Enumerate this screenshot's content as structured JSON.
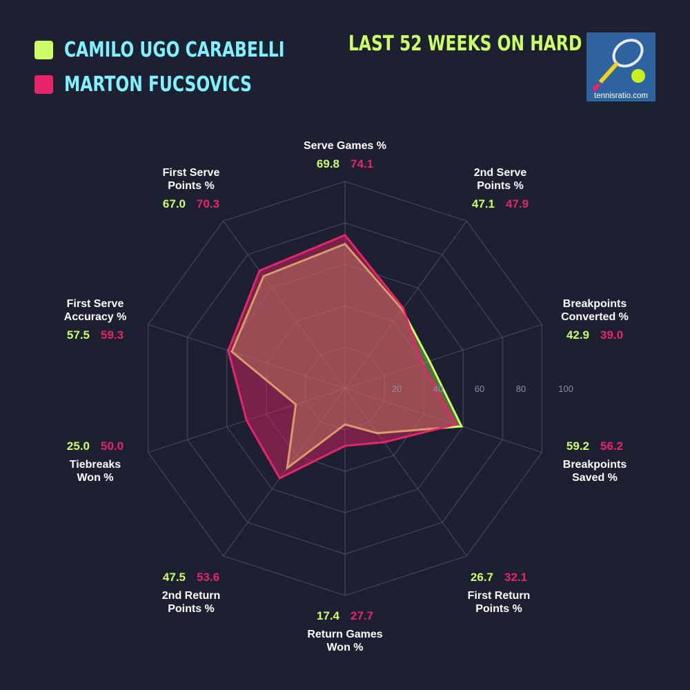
{
  "legend": [
    {
      "name": "CAMILO UGO CARABELLI",
      "color": "#ccff66"
    },
    {
      "name": "MARTON FUCSOVICS",
      "color": "#e8246a"
    }
  ],
  "period": "LAST 52 WEEKS ON HARD",
  "logo": {
    "text": "tennisratio.com",
    "icon": "tennis-racket-ball-icon"
  },
  "chart_data": {
    "type": "radar",
    "title": "LAST 52 WEEKS ON HARD",
    "rlim": [
      0,
      100
    ],
    "ticks": [
      "20",
      "40",
      "60",
      "80",
      "100"
    ],
    "tick_values": [
      20,
      40,
      60,
      80,
      100
    ],
    "categories": [
      "Serve Games %",
      "2nd Serve\nPoints %",
      "Breakpoints\nConverted %",
      "Breakpoints\nSaved %",
      "First Return\nPoints %",
      "Return Games\nWon %",
      "2nd Return\nPoints %",
      "Tiebreaks\nWon %",
      "First Serve\nAccuracy %",
      "First Serve\nPoints %"
    ],
    "series": [
      {
        "name": "CAMILO UGO CARABELLI",
        "color": "#ccff66",
        "values": [
          69.8,
          47.1,
          42.9,
          59.2,
          26.7,
          17.4,
          47.5,
          25.0,
          57.5,
          67.0
        ],
        "labels": [
          "69.8",
          "47.1",
          "42.9",
          "59.2",
          "26.7",
          "17.4",
          "47.5",
          "25.0",
          "57.5",
          "67.0"
        ]
      },
      {
        "name": "MARTON FUCSOVICS",
        "color": "#e8246a",
        "values": [
          74.1,
          47.9,
          39.0,
          56.2,
          32.1,
          27.7,
          53.6,
          50.0,
          59.3,
          70.3
        ],
        "labels": [
          "74.1",
          "47.9",
          "39.0",
          "56.2",
          "32.1",
          "27.7",
          "53.6",
          "50.0",
          "59.3",
          "70.3"
        ]
      }
    ],
    "grid": true,
    "legend_position": "top-left"
  }
}
